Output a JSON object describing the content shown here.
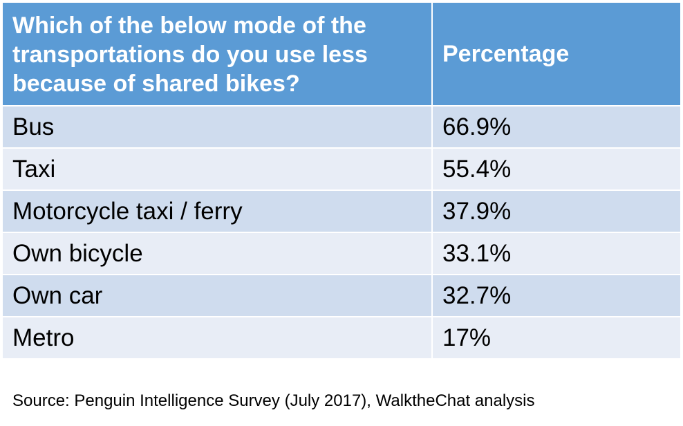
{
  "chart_data": {
    "type": "table",
    "columns": [
      "Which of the below mode of the\ntransportations do you use less\nbecause of shared bikes?",
      "Percentage"
    ],
    "rows": [
      {
        "label": "Bus",
        "value": "66.9%"
      },
      {
        "label": "Taxi",
        "value": "55.4%"
      },
      {
        "label": "Motorcycle taxi / ferry",
        "value": "37.9%"
      },
      {
        "label": "Own bicycle",
        "value": "33.1%"
      },
      {
        "label": "Own car",
        "value": "32.7%"
      },
      {
        "label": "Metro",
        "value": "17%"
      }
    ],
    "source": "Source: Penguin Intelligence Survey (July 2017), WalktheChat analysis"
  },
  "colors": {
    "header": "#5b9bd5",
    "row_dark": "#cfdcee",
    "row_light": "#e8edf6"
  }
}
